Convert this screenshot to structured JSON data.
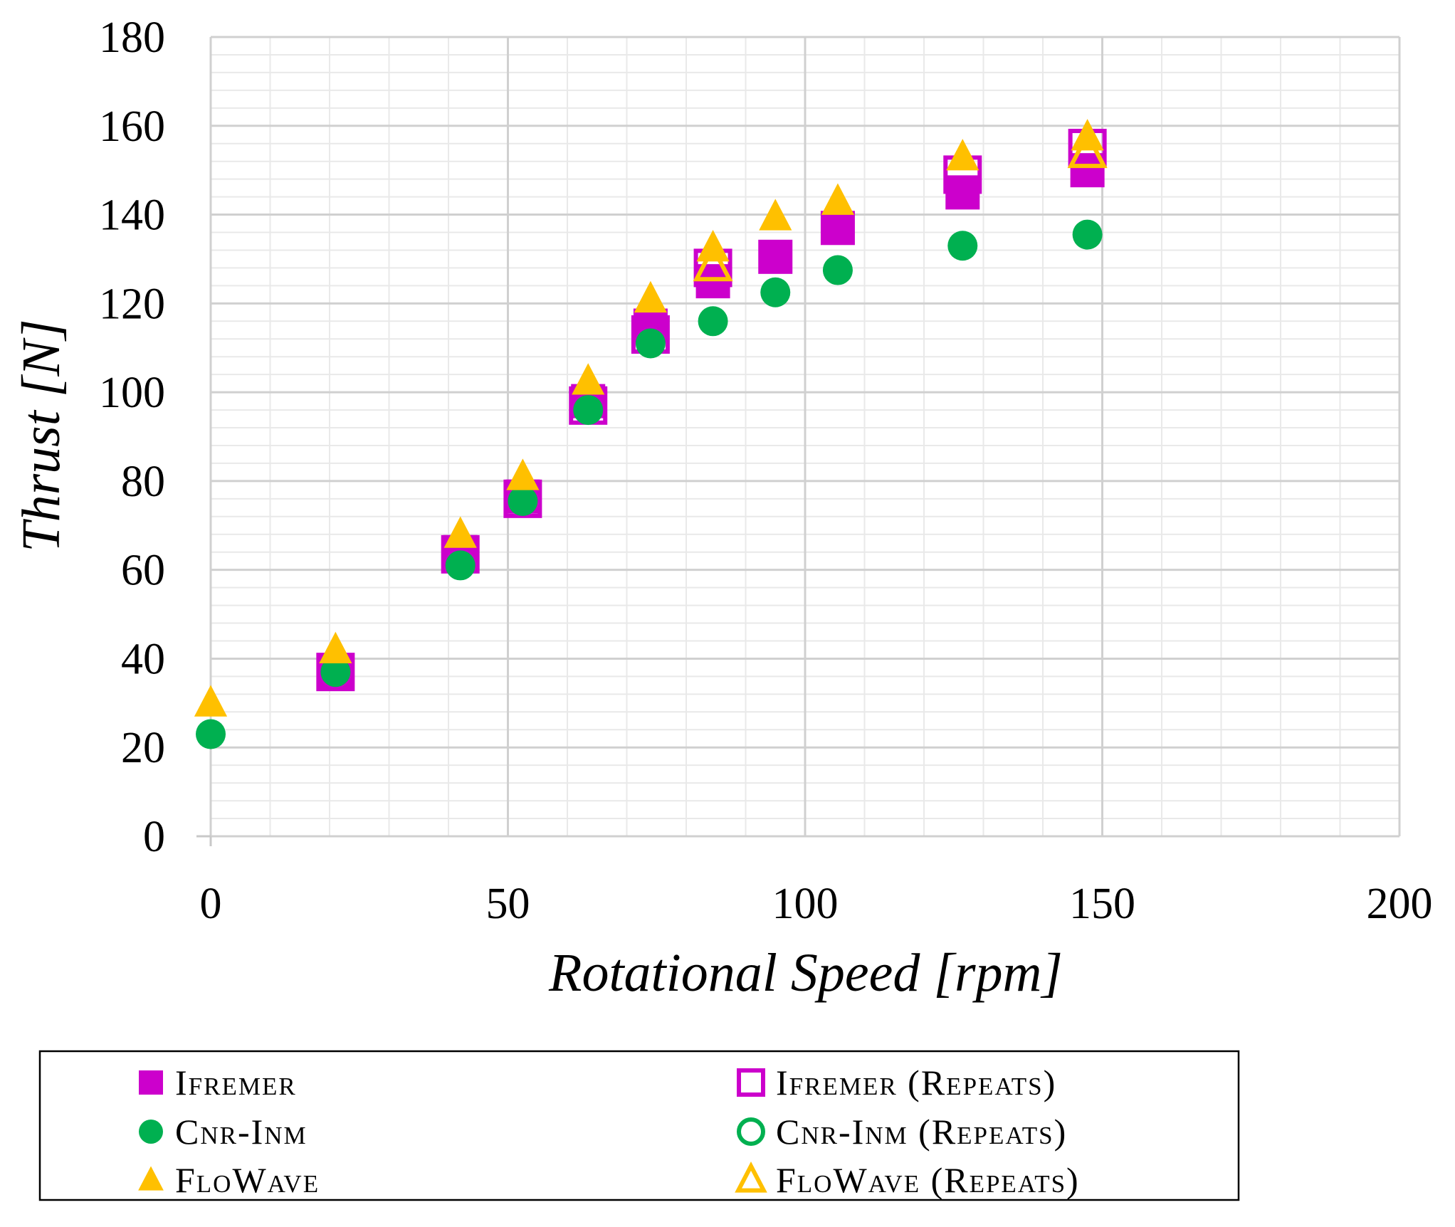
{
  "chart_data": {
    "type": "scatter",
    "title": "",
    "xlabel": "Rotational Speed [rpm]",
    "ylabel": "Thrust [N]",
    "xlim": [
      0,
      200
    ],
    "ylim": [
      0,
      180
    ],
    "x_ticks": [
      0,
      50,
      100,
      150,
      200
    ],
    "y_ticks": [
      0,
      20,
      40,
      60,
      80,
      100,
      120,
      140,
      160,
      180
    ],
    "grid": true,
    "legend_position": "bottom",
    "series": [
      {
        "name": "Ifremer",
        "marker": "square",
        "filled": true,
        "color": "#cc00cc",
        "x": [
          21,
          42,
          52.5,
          63.5,
          74,
          84.5,
          95,
          105.5,
          126.5,
          147.5
        ],
        "y": [
          37,
          64,
          76.5,
          98,
          115,
          125,
          130.5,
          137,
          145,
          150
        ]
      },
      {
        "name": "Ifremer (Repeats)",
        "marker": "square",
        "filled": false,
        "color": "#cc00cc",
        "x": [
          21,
          42,
          52.5,
          63.5,
          74,
          84.5,
          126.5,
          147.5
        ],
        "y": [
          37,
          63.5,
          76,
          97,
          113,
          128,
          149,
          155
        ]
      },
      {
        "name": "Cnr-Inm",
        "marker": "circle",
        "filled": true,
        "color": "#00b050",
        "x": [
          0,
          21,
          42,
          52.5,
          63.5,
          74,
          84.5,
          95,
          105.5,
          126.5,
          147.5
        ],
        "y": [
          23,
          37,
          61,
          75.5,
          96,
          111,
          116,
          122.5,
          127.5,
          133,
          135.5
        ]
      },
      {
        "name": "Cnr-Inm (Repeats)",
        "marker": "circle",
        "filled": false,
        "color": "#00b050",
        "x": [],
        "y": []
      },
      {
        "name": "FloWave",
        "marker": "triangle",
        "filled": true,
        "color": "#ffc000",
        "x": [
          0,
          21,
          42,
          52.5,
          63.5,
          74,
          84.5,
          95,
          105.5,
          126.5,
          147.5
        ],
        "y": [
          30,
          42,
          68,
          81,
          102.5,
          121,
          132.5,
          139.5,
          143,
          153,
          157.5
        ]
      },
      {
        "name": "FloWave (Repeats)",
        "marker": "triangle",
        "filled": false,
        "color": "#ffc000",
        "x": [
          84.5,
          147.5
        ],
        "y": [
          128.5,
          154
        ]
      }
    ]
  }
}
